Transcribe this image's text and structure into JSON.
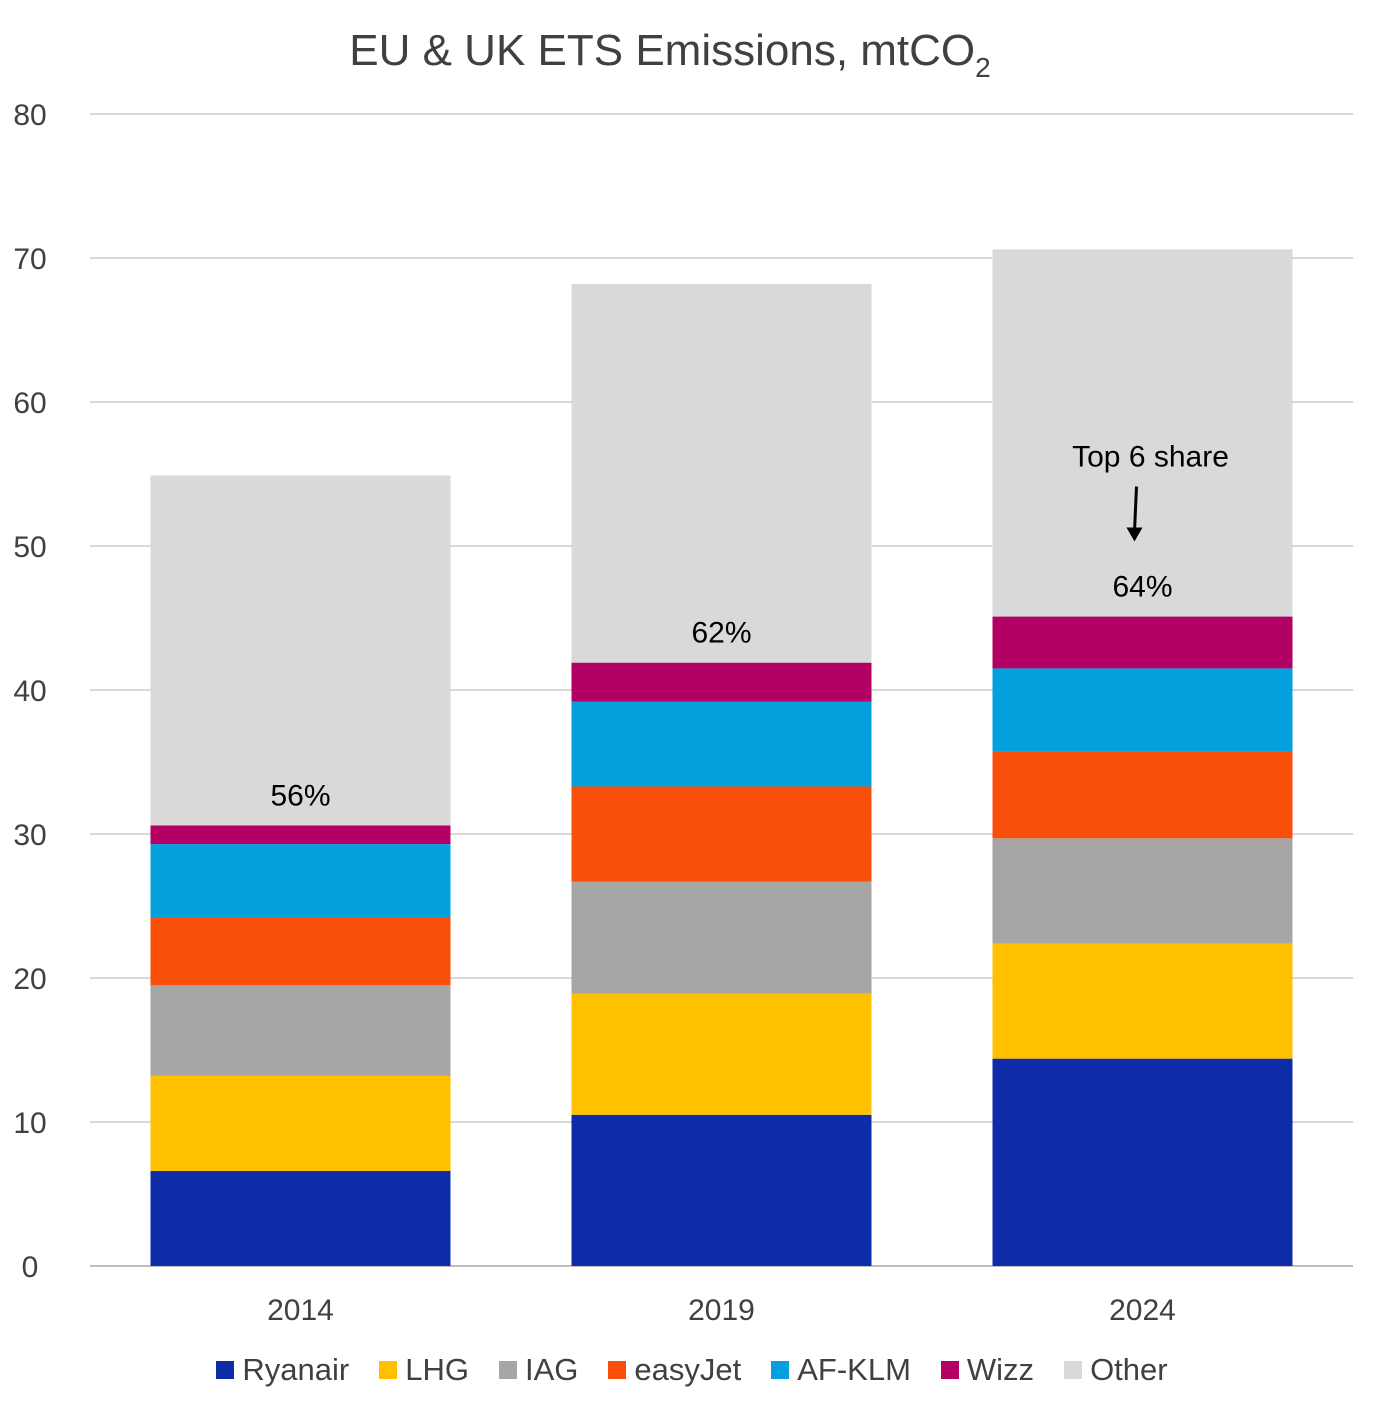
{
  "chart_data": {
    "type": "bar",
    "stacked": true,
    "title": "EU & UK ETS Emissions, mtCO",
    "title_subscript": "2",
    "xlabel": "",
    "ylabel": "",
    "ylim": [
      0,
      80
    ],
    "yticks": [
      0,
      10,
      20,
      30,
      40,
      50,
      60,
      70,
      80
    ],
    "grid": true,
    "categories": [
      "2014",
      "2019",
      "2024"
    ],
    "series": [
      {
        "name": "Ryanair",
        "color": "#0F2CA8",
        "values": [
          6.6,
          10.5,
          14.4
        ]
      },
      {
        "name": "LHG",
        "color": "#FFC000",
        "values": [
          6.6,
          8.4,
          8.0
        ]
      },
      {
        "name": "IAG",
        "color": "#A6A6A6",
        "values": [
          6.3,
          7.8,
          7.3
        ]
      },
      {
        "name": "easyJet",
        "color": "#F84F0A",
        "values": [
          4.7,
          6.6,
          6.0
        ]
      },
      {
        "name": "AF-KLM",
        "color": "#03A0DD",
        "values": [
          5.1,
          5.9,
          5.8
        ]
      },
      {
        "name": "Wizz",
        "color": "#B30065",
        "values": [
          1.3,
          2.7,
          3.6
        ]
      },
      {
        "name": "Other",
        "color": "#D9D9D9",
        "values": [
          24.3,
          26.3,
          25.5
        ]
      }
    ],
    "annotations": {
      "share_labels": [
        "56%",
        "62%",
        "64%"
      ],
      "note": "Top 6 share"
    },
    "legend_position": "bottom"
  }
}
